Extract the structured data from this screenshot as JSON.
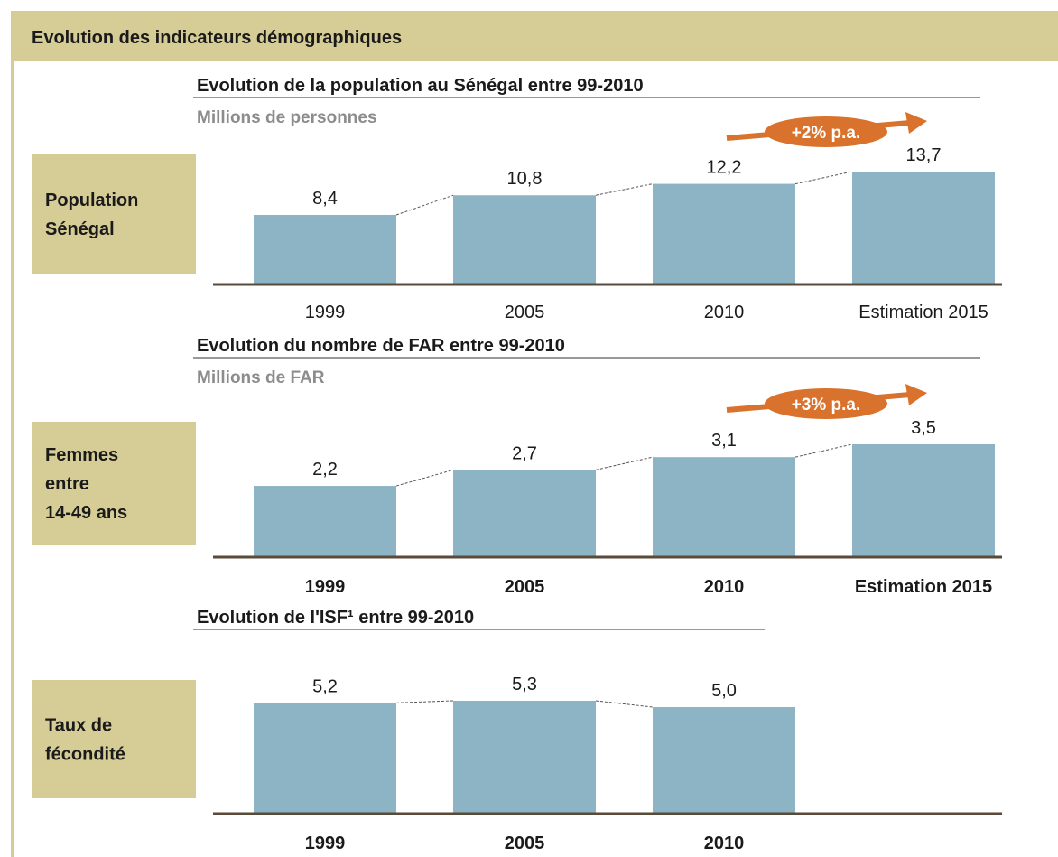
{
  "header": {
    "title": "Evolution des indicateurs démographiques"
  },
  "rows": [
    {
      "label": [
        "Population",
        "Sénégal"
      ]
    },
    {
      "label": [
        "Femmes",
        "entre",
        "14-49 ans"
      ]
    },
    {
      "label": [
        "Taux de",
        "fécondité"
      ]
    }
  ],
  "chart_data": [
    {
      "type": "bar",
      "title": "Evolution de la population au Sénégal entre 99-2010",
      "subtitle": "Millions de personnes",
      "categories": [
        "1999",
        "2005",
        "2010",
        "Estimation 2015"
      ],
      "values": [
        8.4,
        10.8,
        12.2,
        13.7
      ],
      "value_labels": [
        "8,4",
        "10,8",
        "12,2",
        "13,7"
      ],
      "annotation": "+2% p.a.",
      "color": "#8cb4c4"
    },
    {
      "type": "bar",
      "title": "Evolution du nombre de FAR entre 99-2010",
      "subtitle": "Millions de FAR",
      "categories": [
        "1999",
        "2005",
        "2010",
        "Estimation 2015"
      ],
      "values": [
        2.2,
        2.7,
        3.1,
        3.5
      ],
      "value_labels": [
        "2,2",
        "2,7",
        "3,1",
        "3,5"
      ],
      "annotation": "+3% p.a.",
      "color": "#8cb4c4"
    },
    {
      "type": "bar",
      "title": "Evolution de l'ISF¹ entre 99-2010",
      "categories": [
        "1999",
        "2005",
        "2010"
      ],
      "values": [
        5.2,
        5.3,
        5.0
      ],
      "value_labels": [
        "5,2",
        "5,3",
        "5,0"
      ],
      "color": "#8cb4c4"
    }
  ]
}
